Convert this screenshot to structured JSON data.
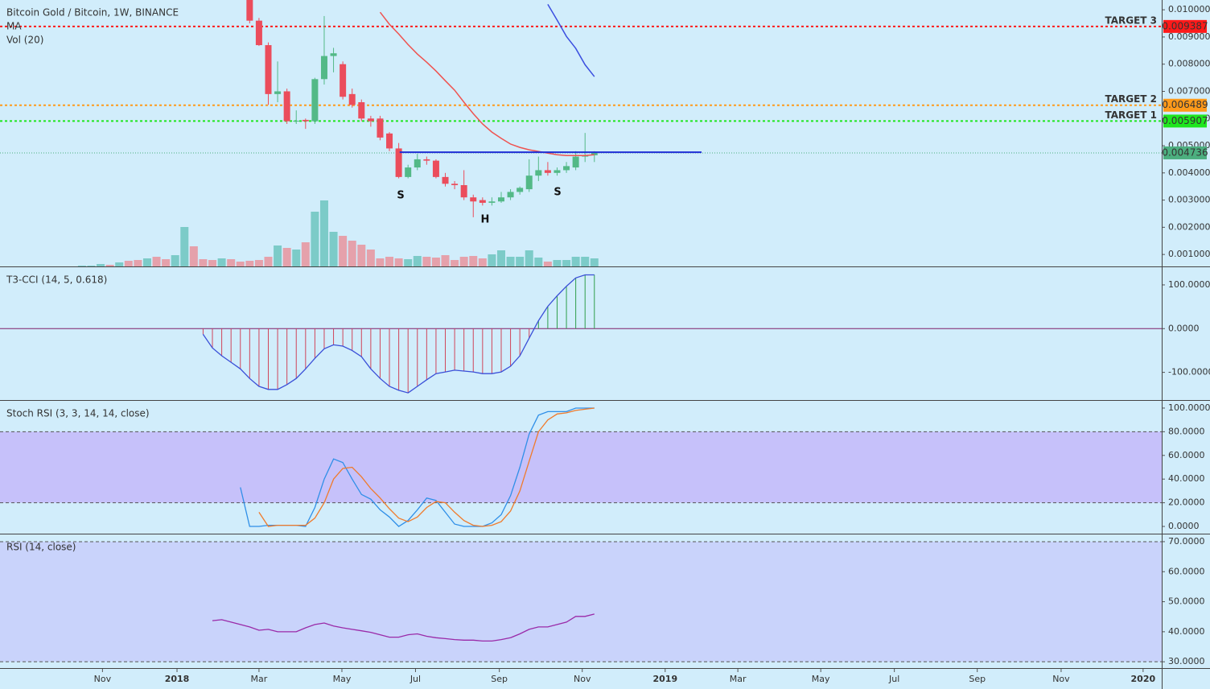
{
  "time_axis": {
    "xlim": [
      -26.8,
      97.9
    ],
    "xticks": [
      {
        "value": -15.8,
        "label": "Nov"
      },
      {
        "value": -7.8,
        "label": "2018"
      },
      {
        "value": 1.0,
        "label": "Mar"
      },
      {
        "value": 9.9,
        "label": "May"
      },
      {
        "value": 17.8,
        "label": "Jul"
      },
      {
        "value": 26.8,
        "label": "Sep"
      },
      {
        "value": 35.7,
        "label": "Nov"
      },
      {
        "value": 44.6,
        "label": "2019"
      },
      {
        "value": 52.4,
        "label": "Mar"
      },
      {
        "value": 61.3,
        "label": "May"
      },
      {
        "value": 69.2,
        "label": "Jul"
      },
      {
        "value": 78.1,
        "label": "Sep"
      },
      {
        "value": 87.1,
        "label": "Nov"
      },
      {
        "value": 95.9,
        "label": "2020"
      }
    ]
  },
  "annotations": [
    "S",
    "H",
    "S"
  ],
  "chart_data": [
    {
      "type": "candlestick",
      "title": "Bitcoin Gold / Bitcoin, 1W, BINANCE",
      "ma_label": "MA",
      "volume_label": "Vol (20)",
      "up_color": "#53b987",
      "down_color": "#eb4d5c",
      "x": [
        0,
        1,
        2,
        3,
        4,
        5,
        6,
        7,
        8,
        9,
        10,
        11,
        12,
        13,
        14,
        15,
        16,
        17,
        18,
        19,
        20,
        21,
        22,
        23,
        24,
        25,
        26,
        27,
        28,
        29,
        30,
        31,
        32,
        33,
        34,
        35,
        36,
        37
      ],
      "open": [
        0.0104,
        0.0096,
        0.0087,
        0.0069,
        0.007,
        0.0059,
        0.00595,
        0.0059,
        0.00745,
        0.0083,
        0.008,
        0.0069,
        0.0066,
        0.006,
        0.006,
        0.00545,
        0.0049,
        0.00385,
        0.0042,
        0.0045,
        0.00445,
        0.00385,
        0.0036,
        0.00355,
        0.0031,
        0.003,
        0.0029,
        0.00295,
        0.0031,
        0.0033,
        0.0034,
        0.0039,
        0.0041,
        0.004,
        0.0041,
        0.0042,
        0.0046,
        0.00465
      ],
      "high": [
        0.0108,
        0.0097,
        0.0088,
        0.0081,
        0.0071,
        0.0063,
        0.006,
        0.0075,
        0.00977,
        0.0086,
        0.0081,
        0.0071,
        0.0067,
        0.0061,
        0.0061,
        0.0055,
        0.0051,
        0.0043,
        0.0047,
        0.0046,
        0.0045,
        0.004,
        0.0037,
        0.0041,
        0.0032,
        0.0031,
        0.0031,
        0.0033,
        0.0034,
        0.0035,
        0.0045,
        0.0046,
        0.0044,
        0.0042,
        0.0044,
        0.0048,
        0.00547,
        0.0048
      ],
      "low": [
        0.0095,
        0.00867,
        0.0065,
        0.0066,
        0.0058,
        0.0058,
        0.00562,
        0.0058,
        0.00725,
        0.0077,
        0.0067,
        0.0064,
        0.0059,
        0.0057,
        0.0052,
        0.0048,
        0.0038,
        0.0038,
        0.0041,
        0.0043,
        0.0038,
        0.0035,
        0.0034,
        0.003,
        0.00237,
        0.0028,
        0.0028,
        0.0029,
        0.003,
        0.0032,
        0.0033,
        0.0037,
        0.0039,
        0.0039,
        0.004,
        0.0041,
        0.0044,
        0.0044
      ],
      "close": [
        0.0096,
        0.0087,
        0.0069,
        0.007,
        0.0059,
        0.00592,
        0.0059,
        0.00745,
        0.0083,
        0.0084,
        0.0068,
        0.0065,
        0.006,
        0.0059,
        0.0053,
        0.0049,
        0.00385,
        0.0042,
        0.0045,
        0.00445,
        0.00385,
        0.0036,
        0.00355,
        0.0031,
        0.00295,
        0.0029,
        0.00295,
        0.0031,
        0.0033,
        0.00345,
        0.0039,
        0.0041,
        0.004,
        0.0041,
        0.00425,
        0.0046,
        0.00465,
        0.004736
      ],
      "volume": {
        "vlim": [
          0,
          100
        ],
        "up_color": "#7ccbc8",
        "down_color": "#e5a1ab",
        "x": [
          -18,
          -17,
          -16,
          -15,
          -14,
          -13,
          -12,
          -11,
          -10,
          -9,
          -8,
          -7,
          -6,
          -5,
          -4,
          -3,
          -2,
          -1,
          0,
          1,
          2,
          3,
          4,
          5,
          6,
          7,
          8,
          9,
          10,
          11,
          12,
          13,
          14,
          15,
          16,
          17,
          18,
          19,
          20,
          21,
          22,
          23,
          24,
          25,
          26,
          27,
          28,
          29,
          30,
          31,
          32,
          33,
          34,
          35,
          36,
          37
        ],
        "values": [
          1,
          1,
          3,
          2,
          5,
          7,
          8,
          10,
          12,
          9,
          14,
          49,
          25,
          9,
          8,
          10,
          9,
          6,
          7,
          8,
          12,
          26,
          23,
          21,
          30,
          68,
          82,
          43,
          38,
          32,
          27,
          21,
          10,
          12,
          10,
          9,
          13,
          12,
          11,
          14,
          8,
          12,
          13,
          10,
          15,
          20,
          12,
          12,
          20,
          11,
          6,
          8,
          8,
          12,
          12,
          10
        ],
        "up": [
          true,
          true,
          true,
          false,
          true,
          false,
          false,
          true,
          false,
          false,
          true,
          true,
          false,
          false,
          false,
          true,
          false,
          false,
          false,
          false,
          false,
          true,
          false,
          true,
          false,
          true,
          true,
          true,
          false,
          false,
          false,
          false,
          false,
          false,
          false,
          true,
          true,
          false,
          false,
          false,
          false,
          false,
          false,
          false,
          true,
          true,
          true,
          true,
          true,
          true,
          false,
          true,
          true,
          true,
          true,
          true
        ]
      },
      "moving_averages": [
        {
          "color": "#ef5350",
          "x": [
            14,
            15,
            16,
            17,
            18,
            19,
            20,
            21,
            22,
            23,
            24,
            25,
            26,
            27,
            28,
            29,
            30,
            31,
            32,
            33,
            34,
            35,
            36,
            37
          ],
          "values": [
            0.00991,
            0.00947,
            0.00911,
            0.00872,
            0.00837,
            0.00807,
            0.00775,
            0.00739,
            0.00704,
            0.0066,
            0.00618,
            0.0058,
            0.0055,
            0.00527,
            0.00506,
            0.00494,
            0.00485,
            0.00479,
            0.00473,
            0.00467,
            0.00464,
            0.00464,
            0.00464,
            0.00467
          ]
        },
        {
          "color": "#3b4fe0",
          "x": [
            32,
            33,
            34,
            35,
            36,
            37
          ],
          "values": [
            0.0102,
            0.00962,
            0.00902,
            0.00858,
            0.00798,
            0.00754
          ]
        }
      ],
      "neckline": {
        "color": "#1f2fd6",
        "x": [
          16.1,
          48.5
        ],
        "values": [
          0.00476,
          0.00476
        ]
      },
      "levels": [
        {
          "name": "TARGET 3",
          "value": 0.009387,
          "color": "#ff1a1a",
          "label_color": "#ffffff"
        },
        {
          "name": "TARGET 2",
          "value": 0.006489,
          "color": "#ff9a1a",
          "label_color": "#ffffff"
        },
        {
          "name": "TARGET 1",
          "value": 0.005907,
          "color": "#1ee61e",
          "label_color": "#111111"
        }
      ],
      "last_price": {
        "value": 0.004736,
        "color": "#4caf7f"
      },
      "ylim": [
        0.00056,
        0.01036
      ],
      "yticks": [
        {
          "value": 0.001,
          "label": "0.001000"
        },
        {
          "value": 0.002,
          "label": "0.002000"
        },
        {
          "value": 0.003,
          "label": "0.003000"
        },
        {
          "value": 0.004,
          "label": "0.004000"
        },
        {
          "value": 0.005,
          "label": "0.005000"
        },
        {
          "value": 0.006,
          "label": "0.006000"
        },
        {
          "value": 0.007,
          "label": "0.007000"
        },
        {
          "value": 0.008,
          "label": "0.008000"
        },
        {
          "value": 0.009,
          "label": "0.009000"
        },
        {
          "value": 0.01,
          "label": "0.010000"
        }
      ]
    },
    {
      "type": "cci",
      "title": "T3-CCI (14, 5, 0.618)",
      "line_color": "#3a4fd8",
      "pos_color": "#2e9e4a",
      "neg_color": "#d0455a",
      "zero_color": "#80206a",
      "x": [
        -5,
        -4,
        -3,
        -2,
        -1,
        0,
        1,
        2,
        3,
        4,
        5,
        6,
        7,
        8,
        9,
        10,
        11,
        12,
        13,
        14,
        15,
        16,
        17,
        18,
        19,
        20,
        21,
        22,
        23,
        24,
        25,
        26,
        27,
        28,
        29,
        30,
        31,
        32,
        33,
        34,
        35,
        36,
        37
      ],
      "values": [
        -13,
        -44,
        -62,
        -77,
        -92,
        -114,
        -132,
        -139,
        -139,
        -128,
        -114,
        -92,
        -68,
        -46,
        -37,
        -40,
        -50,
        -64,
        -92,
        -114,
        -132,
        -141,
        -147,
        -132,
        -117,
        -103,
        -99,
        -95,
        -97,
        -99,
        -103,
        -103,
        -99,
        -86,
        -62,
        -22,
        18,
        51,
        75,
        97,
        116,
        123,
        123
      ],
      "ylim": [
        -163.3,
        140.4
      ],
      "yticks": [
        {
          "value": -100,
          "label": "-100.0000"
        },
        {
          "value": 0,
          "label": "0.0000"
        },
        {
          "value": 100,
          "label": "100.0000"
        }
      ]
    },
    {
      "type": "line",
      "title": "Stoch RSI (3, 3, 14, 14, close)",
      "band": [
        20,
        80
      ],
      "band_color": "#c6c1fa",
      "x": [
        -1,
        0,
        1,
        2,
        3,
        4,
        5,
        6,
        7,
        8,
        9,
        10,
        11,
        12,
        13,
        14,
        15,
        16,
        17,
        18,
        19,
        20,
        21,
        22,
        23,
        24,
        25,
        26,
        27,
        28,
        29,
        30,
        31,
        32,
        33,
        34,
        35,
        36,
        37
      ],
      "series": [
        {
          "color": "#2f8fe8",
          "values": [
            33,
            0,
            0,
            1,
            1,
            1,
            1,
            0,
            16,
            40,
            57,
            54,
            40,
            27,
            23,
            14,
            8,
            0,
            5,
            14,
            24,
            22,
            12,
            2,
            0,
            0,
            0,
            3,
            10,
            26,
            50,
            78,
            94,
            97,
            97,
            97,
            100,
            100,
            100
          ]
        },
        {
          "color": "#f07a2a",
          "values": [
            null,
            null,
            12,
            0,
            1,
            1,
            1,
            1,
            7,
            20,
            40,
            49,
            50,
            42,
            32,
            24,
            15,
            7,
            4,
            8,
            16,
            21,
            20,
            12,
            5,
            1,
            0,
            1,
            4,
            13,
            30,
            55,
            80,
            90,
            95,
            96,
            98,
            99,
            100
          ]
        }
      ],
      "ylim": [
        -6.1,
        106.1
      ],
      "yticks": [
        {
          "value": 0,
          "label": "0.0000"
        },
        {
          "value": 20,
          "label": "20.0000"
        },
        {
          "value": 40,
          "label": "40.0000"
        },
        {
          "value": 60,
          "label": "60.0000"
        },
        {
          "value": 80,
          "label": "80.0000"
        },
        {
          "value": 100,
          "label": "100.0000"
        }
      ]
    },
    {
      "type": "line",
      "title": "RSI (14, close)",
      "band": [
        30,
        70
      ],
      "band_color": "#c9d3fb",
      "x": [
        -4,
        -3,
        -2,
        -1,
        0,
        1,
        2,
        3,
        4,
        5,
        6,
        7,
        8,
        9,
        10,
        11,
        12,
        13,
        14,
        15,
        16,
        17,
        18,
        19,
        20,
        21,
        22,
        23,
        24,
        25,
        26,
        27,
        28,
        29,
        30,
        31,
        32,
        33,
        34,
        35,
        36,
        37
      ],
      "series": [
        {
          "color": "#9a2aa8",
          "values": [
            43.7,
            44.0,
            43.2,
            42.4,
            41.6,
            40.5,
            40.8,
            40.0,
            40.0,
            40.0,
            41.3,
            42.4,
            42.9,
            41.9,
            41.3,
            40.8,
            40.3,
            39.8,
            39.0,
            38.2,
            38.2,
            39.0,
            39.3,
            38.5,
            38.0,
            37.7,
            37.4,
            37.2,
            37.2,
            36.9,
            36.9,
            37.4,
            38.0,
            39.3,
            40.8,
            41.6,
            41.6,
            42.4,
            43.2,
            45.1,
            45.1,
            45.9
          ]
        }
      ],
      "ylim": [
        27.9,
        72.4
      ],
      "yticks": [
        {
          "value": 30,
          "label": "30.0000"
        },
        {
          "value": 40,
          "label": "40.0000"
        },
        {
          "value": 50,
          "label": "50.0000"
        },
        {
          "value": 60,
          "label": "60.0000"
        },
        {
          "value": 70,
          "label": "70.0000"
        }
      ]
    }
  ]
}
